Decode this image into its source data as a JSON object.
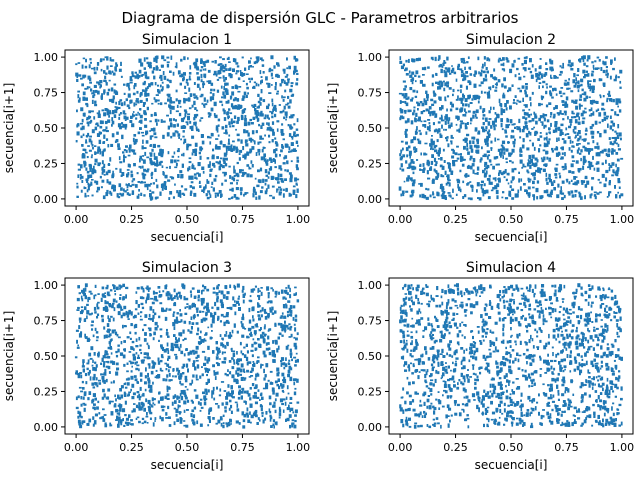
{
  "figure": {
    "suptitle": "Diagrama de dispersión GLC - Parametros arbitrarios"
  },
  "colors": {
    "points": "#1f77b4",
    "axes": "#000000",
    "background": "#ffffff"
  },
  "chart_data": [
    {
      "type": "scatter",
      "title": "Simulacion 1",
      "xlabel": "secuencia[i]",
      "ylabel": "secuencia[i+1]",
      "xlim": [
        -0.05,
        1.05
      ],
      "ylim": [
        -0.05,
        1.05
      ],
      "xticks": [
        0.0,
        0.25,
        0.5,
        0.75,
        1.0
      ],
      "yticks": [
        0.0,
        0.25,
        0.5,
        0.75,
        1.0
      ],
      "xticklabels": [
        "0.00",
        "0.25",
        "0.50",
        "0.75",
        "1.00"
      ],
      "yticklabels": [
        "0.00",
        "0.25",
        "0.50",
        "0.75",
        "1.00"
      ],
      "grid": false,
      "points_distribution": "uniform random over [0,1] x [0,1]"
    },
    {
      "type": "scatter",
      "title": "Simulacion 2",
      "xlabel": "secuencia[i]",
      "ylabel": "secuencia[i+1]",
      "xlim": [
        -0.05,
        1.05
      ],
      "ylim": [
        -0.05,
        1.05
      ],
      "xticks": [
        0.0,
        0.25,
        0.5,
        0.75,
        1.0
      ],
      "yticks": [
        0.0,
        0.25,
        0.5,
        0.75,
        1.0
      ],
      "xticklabels": [
        "0.00",
        "0.25",
        "0.50",
        "0.75",
        "1.00"
      ],
      "yticklabels": [
        "0.00",
        "0.25",
        "0.50",
        "0.75",
        "1.00"
      ],
      "grid": false,
      "points_distribution": "uniform random over [0,1] x [0,1]"
    },
    {
      "type": "scatter",
      "title": "Simulacion 3",
      "xlabel": "secuencia[i]",
      "ylabel": "secuencia[i+1]",
      "xlim": [
        -0.05,
        1.05
      ],
      "ylim": [
        -0.05,
        1.05
      ],
      "xticks": [
        0.0,
        0.25,
        0.5,
        0.75,
        1.0
      ],
      "yticks": [
        0.0,
        0.25,
        0.5,
        0.75,
        1.0
      ],
      "xticklabels": [
        "0.00",
        "0.25",
        "0.50",
        "0.75",
        "1.00"
      ],
      "yticklabels": [
        "0.00",
        "0.25",
        "0.50",
        "0.75",
        "1.00"
      ],
      "grid": false,
      "points_distribution": "uniform random over [0,1] x [0,1]"
    },
    {
      "type": "scatter",
      "title": "Simulacion 4",
      "xlabel": "secuencia[i]",
      "ylabel": "secuencia[i+1]",
      "xlim": [
        -0.05,
        1.05
      ],
      "ylim": [
        -0.05,
        1.05
      ],
      "xticks": [
        0.0,
        0.25,
        0.5,
        0.75,
        1.0
      ],
      "yticks": [
        0.0,
        0.25,
        0.5,
        0.75,
        1.0
      ],
      "xticklabels": [
        "0.00",
        "0.25",
        "0.50",
        "0.75",
        "1.00"
      ],
      "yticklabels": [
        "0.00",
        "0.25",
        "0.50",
        "0.75",
        "1.00"
      ],
      "grid": false,
      "points_distribution": "uniform random over [0,1] x [0,1]"
    }
  ]
}
